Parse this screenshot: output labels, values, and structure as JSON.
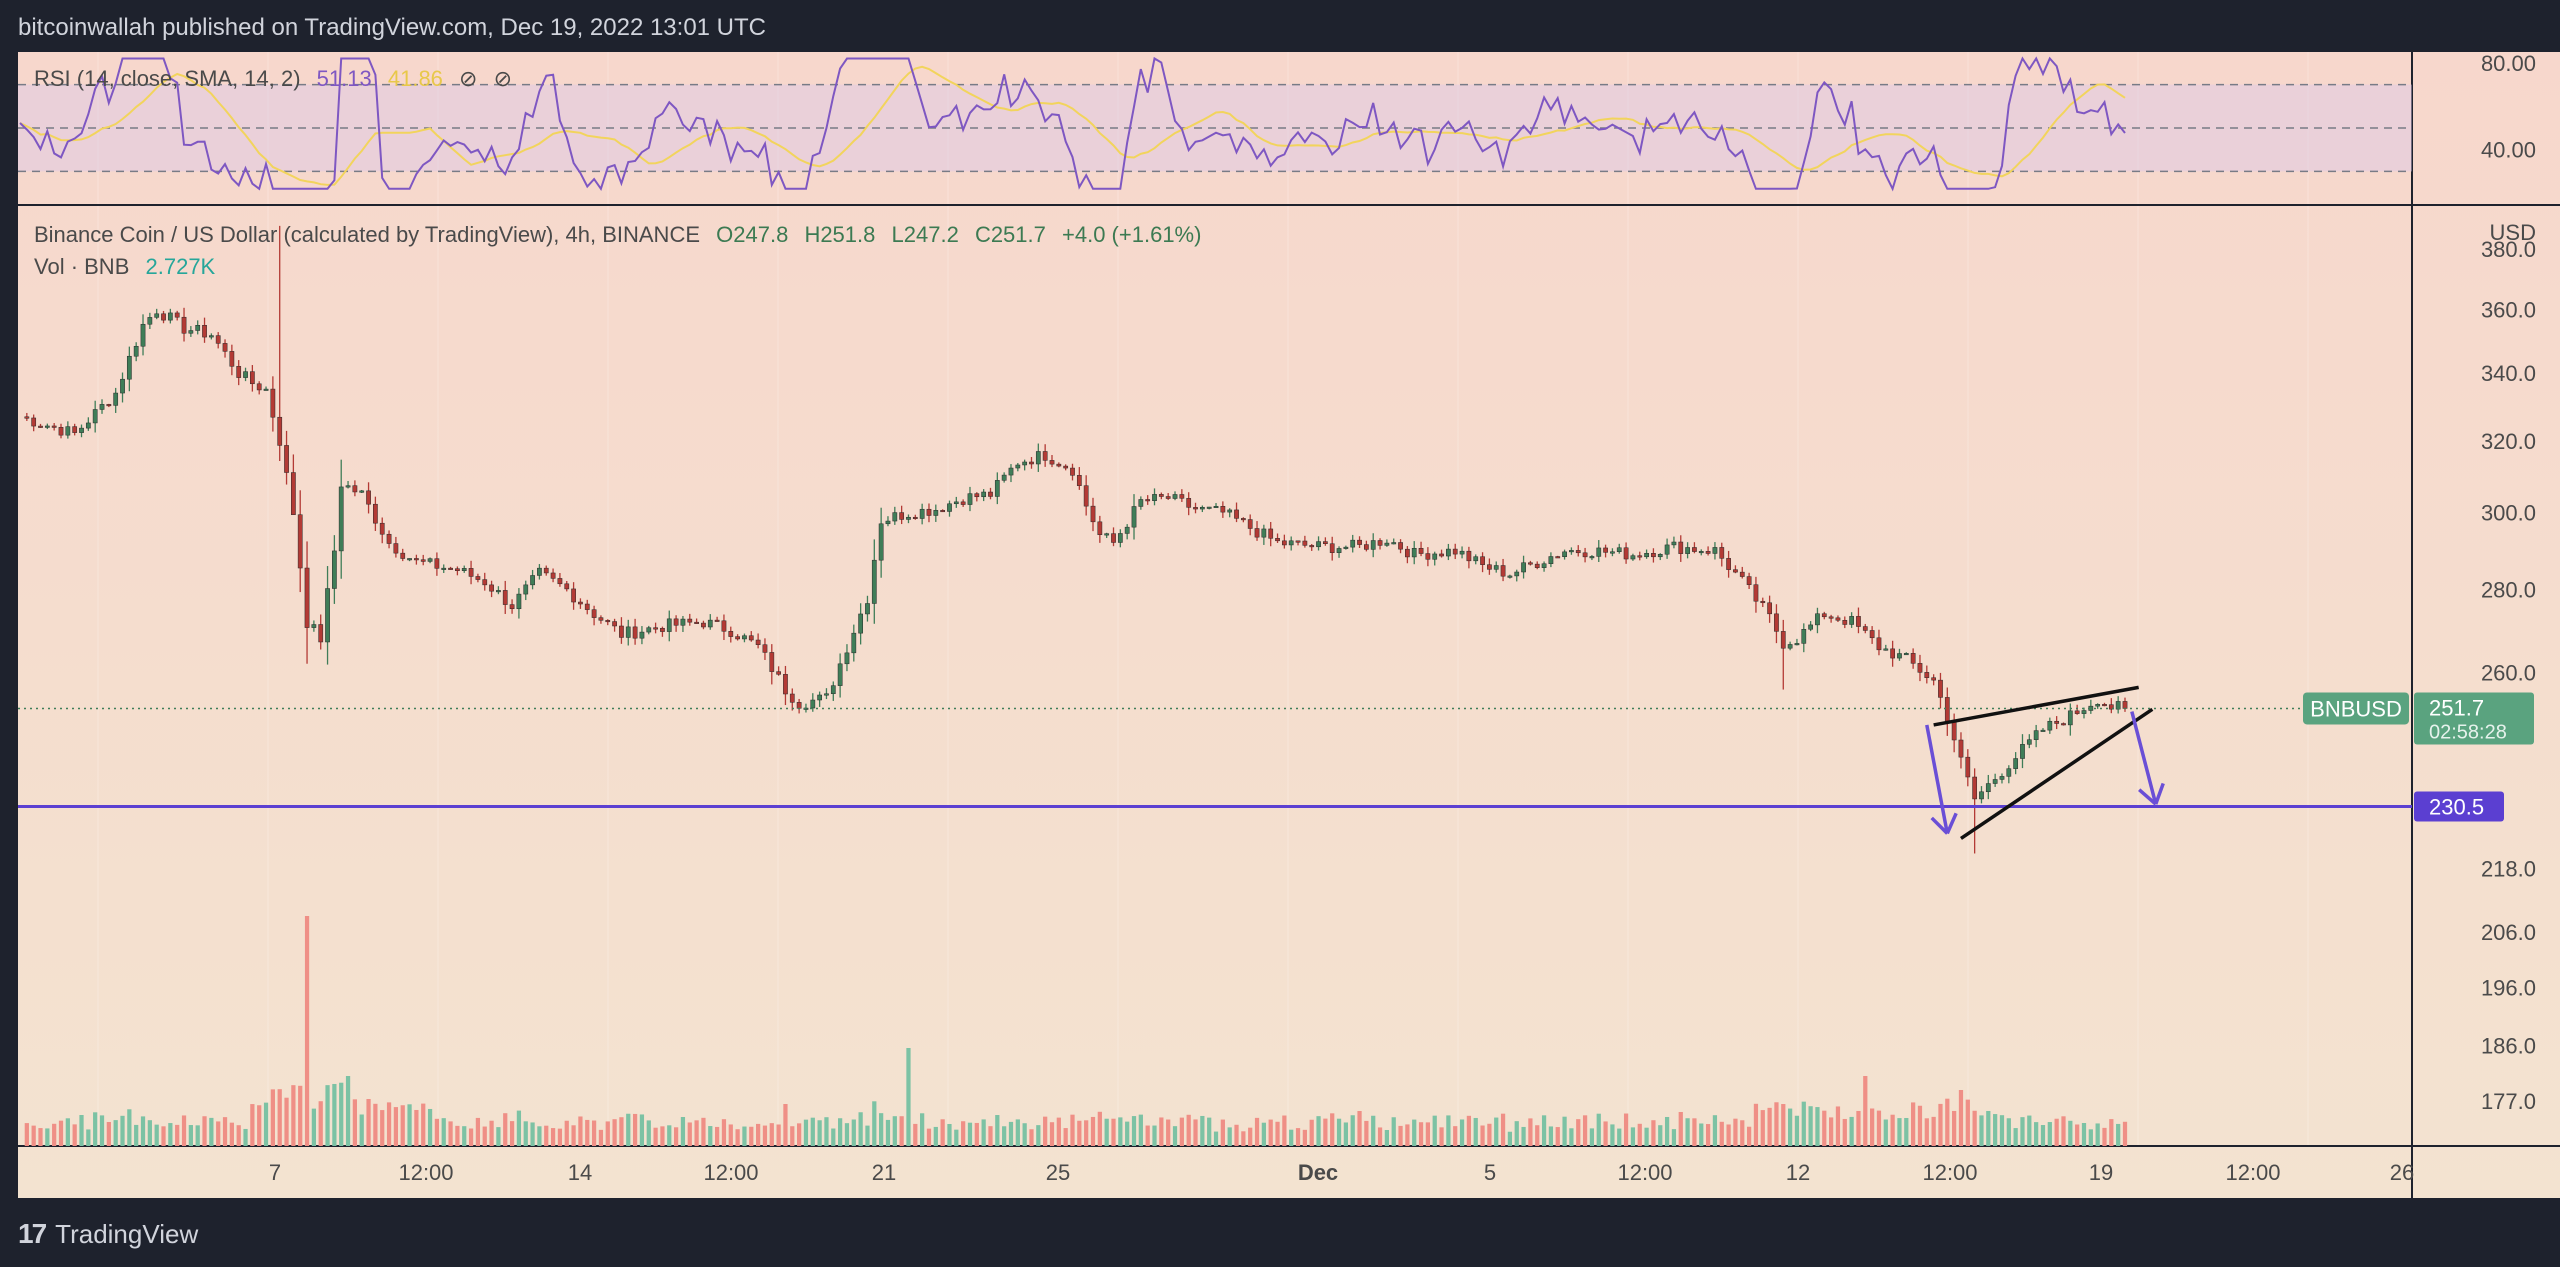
{
  "header": {
    "text": "bitcoinwallah published on TradingView.com, Dec 19, 2022 13:01 UTC"
  },
  "footer": {
    "brand": "TradingView",
    "logo_icon": "tradingview-logo-icon"
  },
  "rsi_panel": {
    "label": "RSI (14, close, SMA, 14, 2)",
    "rsi_value": "51.13",
    "sma_value": "41.86",
    "icons": [
      "⊘",
      "⊘"
    ],
    "levels": [
      70,
      50,
      30
    ],
    "ticks": [
      "80.00",
      "40.00"
    ]
  },
  "main_legend": {
    "symbol_text": "Binance Coin / US Dollar (calculated by TradingView), 4h, BINANCE",
    "open": "O247.8",
    "high": "H251.8",
    "low": "L247.2",
    "close": "C251.7",
    "change": "+4.0 (+1.61%)",
    "vol_label": "Vol · BNB",
    "vol_value": "2.727K"
  },
  "price_axis": {
    "currency": "USD",
    "ticks": [
      "380.0",
      "360.0",
      "340.0",
      "320.0",
      "300.0",
      "280.0",
      "260.0",
      "218.0",
      "206.0",
      "196.0",
      "186.0",
      "177.0"
    ]
  },
  "price_tag": {
    "symbol": "BNBUSD",
    "price": "251.7",
    "countdown": "02:58:28"
  },
  "support": {
    "price": "230.5"
  },
  "time_axis": {
    "ticks": [
      "7",
      "12:00",
      "14",
      "12:00",
      "21",
      "25",
      "Dec",
      "5",
      "12:00",
      "12",
      "12:00",
      "19",
      "12:00",
      "26"
    ]
  },
  "colors": {
    "background": "#f5dfcf",
    "up": "#3f7d58",
    "down": "#b33a35",
    "rsi_line": "#7e57c2",
    "rsi_sma": "#f2d45c",
    "support_line": "#5b3fd1",
    "vol_up": "#7cc2a4",
    "vol_down": "#ef8f86",
    "price_tag": "#5aa37f"
  },
  "chart_data": {
    "type": "candlestick",
    "interval": "4h",
    "y_scale": "log",
    "ylim": [
      170,
      395
    ],
    "pattern": "rising wedge",
    "support_level": 230.5,
    "current_price": 251.7,
    "anchors": [
      [
        0,
        327
      ],
      [
        8,
        322
      ],
      [
        14,
        334
      ],
      [
        18,
        355
      ],
      [
        20,
        360
      ],
      [
        24,
        354
      ],
      [
        28,
        352
      ],
      [
        30,
        346
      ],
      [
        32,
        340
      ],
      [
        34,
        337
      ],
      [
        36,
        335
      ],
      [
        38,
        320
      ],
      [
        40,
        300
      ],
      [
        42,
        272
      ],
      [
        44,
        268
      ],
      [
        46,
        290
      ],
      [
        47,
        308
      ],
      [
        50,
        305
      ],
      [
        54,
        292
      ],
      [
        58,
        287
      ],
      [
        64,
        285
      ],
      [
        68,
        282
      ],
      [
        72,
        276
      ],
      [
        76,
        284
      ],
      [
        80,
        280
      ],
      [
        84,
        274
      ],
      [
        88,
        269
      ],
      [
        94,
        271
      ],
      [
        100,
        272
      ],
      [
        104,
        270
      ],
      [
        108,
        266
      ],
      [
        112,
        256
      ],
      [
        114,
        253
      ],
      [
        118,
        254
      ],
      [
        120,
        262
      ],
      [
        124,
        278
      ],
      [
        126,
        298
      ],
      [
        130,
        300
      ],
      [
        134,
        301
      ],
      [
        138,
        304
      ],
      [
        142,
        305
      ],
      [
        146,
        314
      ],
      [
        150,
        316
      ],
      [
        154,
        312
      ],
      [
        156,
        302
      ],
      [
        158,
        294
      ],
      [
        160,
        292
      ],
      [
        164,
        303
      ],
      [
        168,
        304
      ],
      [
        172,
        301
      ],
      [
        176,
        300
      ],
      [
        180,
        296
      ],
      [
        184,
        292
      ],
      [
        190,
        291
      ],
      [
        196,
        291
      ],
      [
        200,
        293
      ],
      [
        204,
        289
      ],
      [
        210,
        290
      ],
      [
        214,
        286
      ],
      [
        218,
        284
      ],
      [
        222,
        287
      ],
      [
        226,
        290
      ],
      [
        230,
        290
      ],
      [
        236,
        289
      ],
      [
        242,
        291
      ],
      [
        248,
        290
      ],
      [
        252,
        282
      ],
      [
        256,
        273
      ],
      [
        258,
        267
      ],
      [
        260,
        268
      ],
      [
        264,
        274
      ],
      [
        268,
        272
      ],
      [
        272,
        266
      ],
      [
        276,
        263
      ],
      [
        280,
        258
      ],
      [
        282,
        250
      ],
      [
        284,
        240
      ],
      [
        286,
        232
      ],
      [
        288,
        235
      ],
      [
        292,
        241
      ],
      [
        296,
        247
      ],
      [
        300,
        250
      ],
      [
        304,
        254
      ],
      [
        306,
        252
      ],
      [
        308,
        251.7
      ]
    ],
    "volume_spikes": [
      [
        42,
        16.5
      ],
      [
        48,
        5
      ],
      [
        112,
        3
      ],
      [
        130,
        7
      ],
      [
        196,
        2.5
      ],
      [
        270,
        5
      ],
      [
        284,
        4
      ]
    ]
  }
}
